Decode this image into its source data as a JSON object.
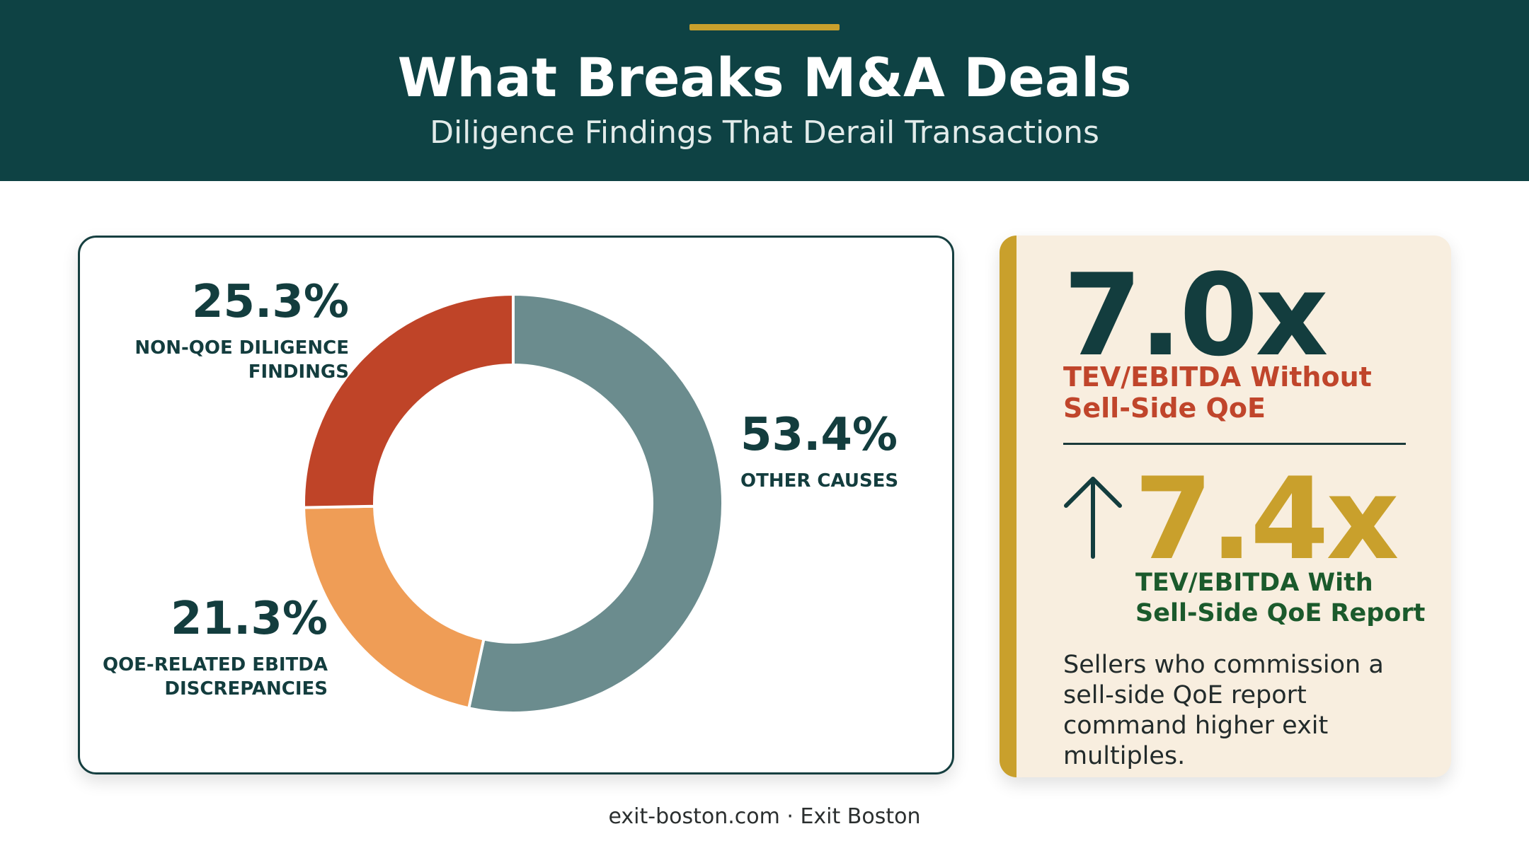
{
  "header": {
    "title": "What Breaks M&A Deals",
    "subtitle": "Diligence Findings That Derail Transactions"
  },
  "chart_data": {
    "type": "pie",
    "style": "donut",
    "title": "",
    "segments": [
      {
        "value": 53.4,
        "value_label": "53.4%",
        "label_lines": [
          "OTHER CAUSES"
        ],
        "color": "#6b8c8e"
      },
      {
        "value": 21.3,
        "value_label": "21.3%",
        "label_lines": [
          "QOE-RELATED EBITDA",
          "DISCREPANCIES"
        ],
        "color": "#ef9d56"
      },
      {
        "value": 25.3,
        "value_label": "25.3%",
        "label_lines": [
          "NON-QOE DILIGENCE",
          "FINDINGS"
        ],
        "color": "#bf4428"
      }
    ]
  },
  "stats": {
    "without_value": "7.0x",
    "without_label": "TEV/EBITDA Without Sell-Side QoE",
    "with_value": "7.4x",
    "with_label": "TEV/EBITDA With Sell-Side QoE Report",
    "description": "Sellers who commission a sell-side QoE report command higher exit multiples.",
    "colors": {
      "accent": "#c9a02c",
      "dark": "#133d3e",
      "red": "#c0452b",
      "green": "#1b5a2c"
    },
    "arrow_icon": "arrow-up-icon"
  },
  "footer": {
    "text": "exit-boston.com · Exit Boston"
  }
}
